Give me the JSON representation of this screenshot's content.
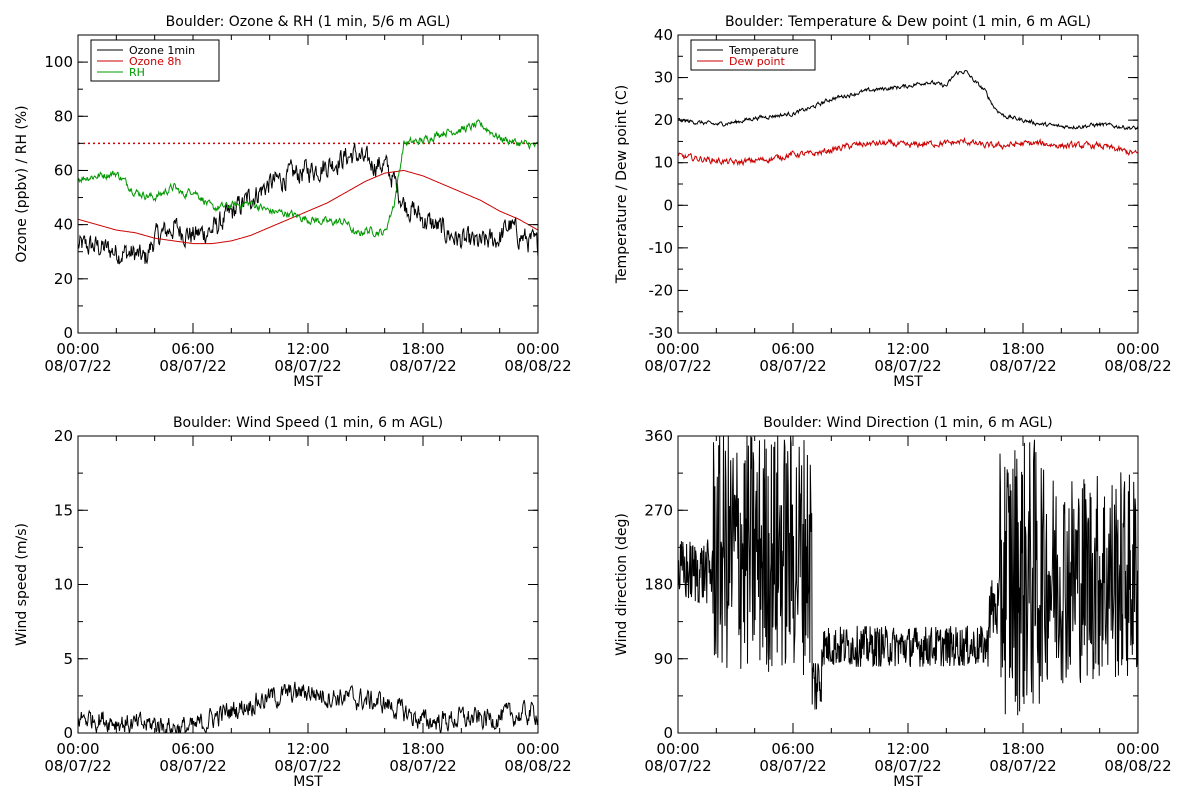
{
  "chart_data": [
    {
      "type": "line",
      "title": "Boulder: Ozone & RH (1 min, 5/6 m AGL)",
      "xlabel": "MST",
      "ylabel": "Ozone (ppbv) / RH (%)",
      "x_ticks": [
        {
          "hour": 0,
          "time": "00:00",
          "date": "08/07/22"
        },
        {
          "hour": 6,
          "time": "06:00",
          "date": "08/07/22"
        },
        {
          "hour": 12,
          "time": "12:00",
          "date": "08/07/22"
        },
        {
          "hour": 18,
          "time": "18:00",
          "date": "08/07/22"
        },
        {
          "hour": 24,
          "time": "00:00",
          "date": "08/08/22"
        }
      ],
      "xlim": [
        0,
        24
      ],
      "ylim": [
        0,
        110
      ],
      "y_ticks": [
        0,
        20,
        40,
        60,
        80,
        100
      ],
      "reference_line": {
        "y": 70,
        "color": "#cc0000",
        "style": "dotted"
      },
      "legend": {
        "position": "top-left",
        "entries": [
          {
            "label": "Ozone 1min",
            "color": "#000000"
          },
          {
            "label": "Ozone 8h",
            "color": "#cc0000"
          },
          {
            "label": "RH",
            "color": "#009900"
          }
        ]
      },
      "series": [
        {
          "name": "Ozone 1min",
          "color": "#000000",
          "noise": 3.5,
          "x": [
            0,
            1,
            2,
            3,
            3.5,
            4,
            5,
            6,
            7,
            8,
            9,
            10,
            11,
            12,
            13,
            14,
            14.5,
            15,
            16,
            16.5,
            17,
            18,
            19,
            20,
            21,
            22,
            22.5,
            23,
            24
          ],
          "y": [
            32,
            32,
            30,
            29,
            27,
            35,
            39,
            36,
            38,
            44,
            50,
            55,
            58,
            60,
            62,
            65,
            66,
            63,
            62,
            56,
            48,
            42,
            38,
            34,
            33,
            35,
            40,
            36,
            32
          ]
        },
        {
          "name": "Ozone 8h",
          "color": "#cc0000",
          "noise": 0,
          "x": [
            0,
            1,
            2,
            3,
            4,
            5,
            6,
            7,
            8,
            9,
            10,
            11,
            12,
            13,
            14,
            15,
            16,
            17,
            18,
            19,
            20,
            21,
            22,
            23,
            24
          ],
          "y": [
            42,
            40,
            38,
            37,
            35,
            34,
            33,
            33,
            34,
            36,
            39,
            42,
            45,
            48,
            52,
            56,
            59,
            60,
            58,
            55,
            52,
            49,
            45,
            42,
            38
          ]
        },
        {
          "name": "RH",
          "color": "#009900",
          "noise": 1.2,
          "x": [
            0,
            1,
            2,
            3,
            3.5,
            4,
            5,
            5.5,
            6,
            7,
            8,
            9,
            10,
            11,
            12,
            13,
            14,
            14.5,
            15,
            16,
            16.5,
            17,
            18,
            19,
            20,
            21,
            22,
            22.5,
            23,
            24
          ],
          "y": [
            57,
            58,
            59,
            52,
            51,
            50,
            54,
            51,
            53,
            46,
            47,
            48,
            45,
            44,
            42,
            41,
            41,
            36,
            38,
            37,
            48,
            70,
            71,
            74,
            75,
            77,
            72,
            71,
            70,
            69
          ]
        }
      ]
    },
    {
      "type": "line",
      "title": "Boulder: Temperature & Dew point (1 min, 6 m AGL)",
      "xlabel": "MST",
      "ylabel": "Temperature / Dew point (C)",
      "x_ticks": [
        {
          "hour": 0,
          "time": "00:00",
          "date": "08/07/22"
        },
        {
          "hour": 6,
          "time": "06:00",
          "date": "08/07/22"
        },
        {
          "hour": 12,
          "time": "12:00",
          "date": "08/07/22"
        },
        {
          "hour": 18,
          "time": "18:00",
          "date": "08/07/22"
        },
        {
          "hour": 24,
          "time": "00:00",
          "date": "08/08/22"
        }
      ],
      "xlim": [
        0,
        24
      ],
      "ylim": [
        -30,
        40
      ],
      "y_ticks": [
        -30,
        -20,
        -10,
        0,
        10,
        20,
        30,
        40
      ],
      "legend": {
        "position": "top-left",
        "entries": [
          {
            "label": "Temperature",
            "color": "#000000"
          },
          {
            "label": "Dew point",
            "color": "#cc0000"
          }
        ]
      },
      "series": [
        {
          "name": "Temperature",
          "color": "#000000",
          "noise": 0.4,
          "x": [
            0,
            1,
            2,
            3,
            4,
            5,
            6,
            7,
            8,
            9,
            10,
            11,
            12,
            13,
            14,
            14.5,
            15,
            15.5,
            16,
            16.5,
            17,
            18,
            19,
            20,
            21,
            22,
            23,
            24
          ],
          "y": [
            20,
            19.5,
            19,
            19.5,
            20.5,
            21,
            21.5,
            23,
            25,
            26,
            27,
            27.5,
            28,
            29,
            28,
            31,
            31.5,
            29,
            27,
            23,
            21,
            20,
            19,
            18.5,
            18.5,
            19,
            18.5,
            18
          ]
        },
        {
          "name": "Dew point",
          "color": "#cc0000",
          "noise": 0.6,
          "x": [
            0,
            1,
            2,
            3,
            4,
            5,
            6,
            7,
            8,
            9,
            10,
            11,
            12,
            13,
            14,
            15,
            16,
            17,
            18,
            19,
            20,
            21,
            22,
            23,
            24
          ],
          "y": [
            11.5,
            11,
            10.5,
            10,
            10.5,
            11,
            12,
            12,
            13,
            14,
            14.5,
            14.5,
            14,
            14.5,
            14.5,
            15,
            14,
            14,
            14.5,
            14.5,
            14,
            14,
            14,
            13,
            12
          ]
        }
      ]
    },
    {
      "type": "line",
      "title": "Boulder: Wind Speed (1 min, 6 m AGL)",
      "xlabel": "MST",
      "ylabel": "Wind speed (m/s)",
      "x_ticks": [
        {
          "hour": 0,
          "time": "00:00",
          "date": "08/07/22"
        },
        {
          "hour": 6,
          "time": "06:00",
          "date": "08/07/22"
        },
        {
          "hour": 12,
          "time": "12:00",
          "date": "08/07/22"
        },
        {
          "hour": 18,
          "time": "18:00",
          "date": "08/07/22"
        },
        {
          "hour": 24,
          "time": "00:00",
          "date": "08/08/22"
        }
      ],
      "xlim": [
        0,
        24
      ],
      "ylim": [
        0,
        20
      ],
      "y_ticks": [
        0,
        5,
        10,
        15,
        20
      ],
      "series": [
        {
          "name": "Wind speed",
          "color": "#000000",
          "noise": 0.6,
          "x": [
            0,
            1,
            2,
            3,
            4,
            5,
            6,
            7,
            8,
            9,
            10,
            11,
            12,
            13,
            14,
            15,
            16,
            17,
            18,
            19,
            20,
            21,
            22,
            23,
            24
          ],
          "y": [
            1,
            1,
            0.8,
            0.5,
            0.6,
            0.4,
            0.3,
            1,
            1.5,
            2,
            2.4,
            2.6,
            2.8,
            2.5,
            2.4,
            2.2,
            2,
            1.4,
            0.8,
            0.8,
            1,
            0.9,
            1.1,
            1.2,
            1.4
          ]
        }
      ]
    },
    {
      "type": "line",
      "title": "Boulder: Wind Direction (1 min, 6 m AGL)",
      "xlabel": "MST",
      "ylabel": "Wind direction (deg)",
      "x_ticks": [
        {
          "hour": 0,
          "time": "00:00",
          "date": "08/07/22"
        },
        {
          "hour": 6,
          "time": "06:00",
          "date": "08/07/22"
        },
        {
          "hour": 12,
          "time": "12:00",
          "date": "08/07/22"
        },
        {
          "hour": 18,
          "time": "18:00",
          "date": "08/07/22"
        },
        {
          "hour": 24,
          "time": "00:00",
          "date": "08/08/22"
        }
      ],
      "xlim": [
        0,
        24
      ],
      "ylim": [
        0,
        360
      ],
      "y_ticks": [
        0,
        90,
        180,
        270,
        360
      ],
      "series": [
        {
          "name": "Wind direction",
          "color": "#000000",
          "noise": 0,
          "segments": [
            {
              "from": 0,
              "to": 1.8,
              "center": 195,
              "spread": 40
            },
            {
              "from": 1.8,
              "to": 7.0,
              "center": 220,
              "spread": 150
            },
            {
              "from": 7.0,
              "to": 7.5,
              "center": 60,
              "spread": 40
            },
            {
              "from": 7.5,
              "to": 16.2,
              "center": 105,
              "spread": 25
            },
            {
              "from": 16.2,
              "to": 16.8,
              "center": 150,
              "spread": 40
            },
            {
              "from": 16.8,
              "to": 19.0,
              "center": 190,
              "spread": 170
            },
            {
              "from": 19.0,
              "to": 24,
              "center": 190,
              "spread": 130
            }
          ]
        }
      ]
    }
  ]
}
